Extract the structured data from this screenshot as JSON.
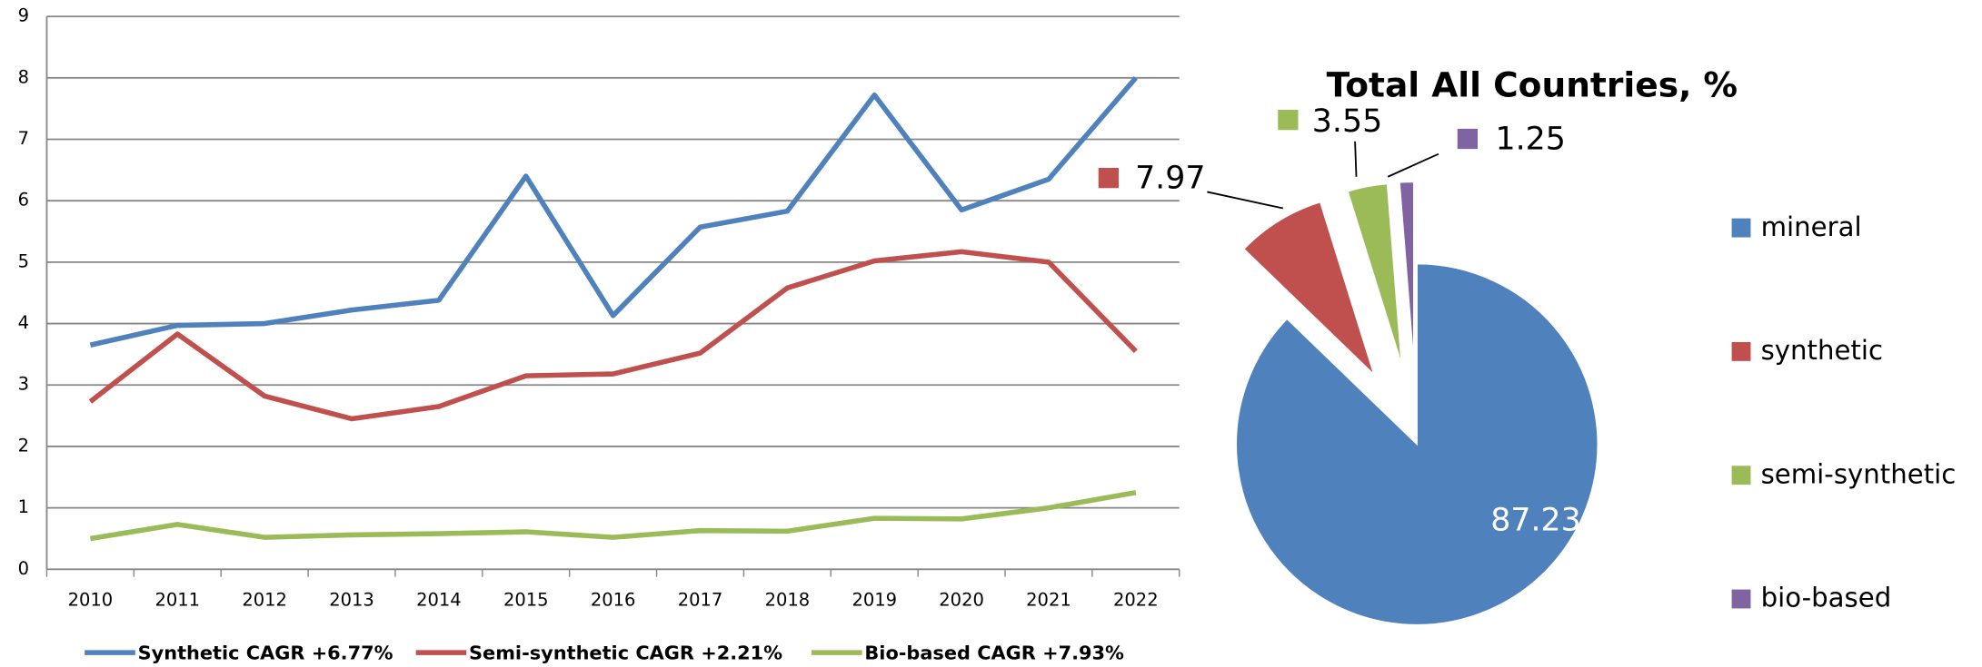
{
  "chart_data": [
    {
      "type": "line",
      "categories": [
        "2010",
        "2011",
        "2012",
        "2013",
        "2014",
        "2015",
        "2016",
        "2017",
        "2018",
        "2019",
        "2020",
        "2021",
        "2022"
      ],
      "series": [
        {
          "name": "Synthetic CAGR +6.77%",
          "color": "#4f81bd",
          "values": [
            3.65,
            3.97,
            4.0,
            4.22,
            4.38,
            6.4,
            4.13,
            5.57,
            5.83,
            7.72,
            5.85,
            6.35,
            8.0
          ]
        },
        {
          "name": "Semi-synthetic CAGR +2.21%",
          "color": "#c0504d",
          "values": [
            2.73,
            3.83,
            2.82,
            2.45,
            2.65,
            3.15,
            3.18,
            3.52,
            4.58,
            5.02,
            5.17,
            5.0,
            3.55
          ]
        },
        {
          "name": "Bio-based CAGR +7.93%",
          "color": "#9bbb59",
          "values": [
            0.5,
            0.73,
            0.52,
            0.56,
            0.58,
            0.61,
            0.52,
            0.63,
            0.62,
            0.83,
            0.82,
            1.0,
            1.25
          ]
        }
      ],
      "ylim": [
        0,
        9
      ],
      "yticks": [
        0,
        1,
        2,
        3,
        4,
        5,
        6,
        7,
        8,
        9
      ],
      "grid": true,
      "legend": "bottom"
    },
    {
      "type": "pie",
      "title": "Total All Countries, %",
      "categories": [
        "mineral",
        "synthetic",
        "semi-synthetic",
        "bio-based"
      ],
      "values": [
        87.23,
        7.97,
        3.55,
        1.25
      ],
      "colors": [
        "#4f81bd",
        "#c0504d",
        "#9bbb59",
        "#8064a2"
      ],
      "legend": "right"
    }
  ]
}
